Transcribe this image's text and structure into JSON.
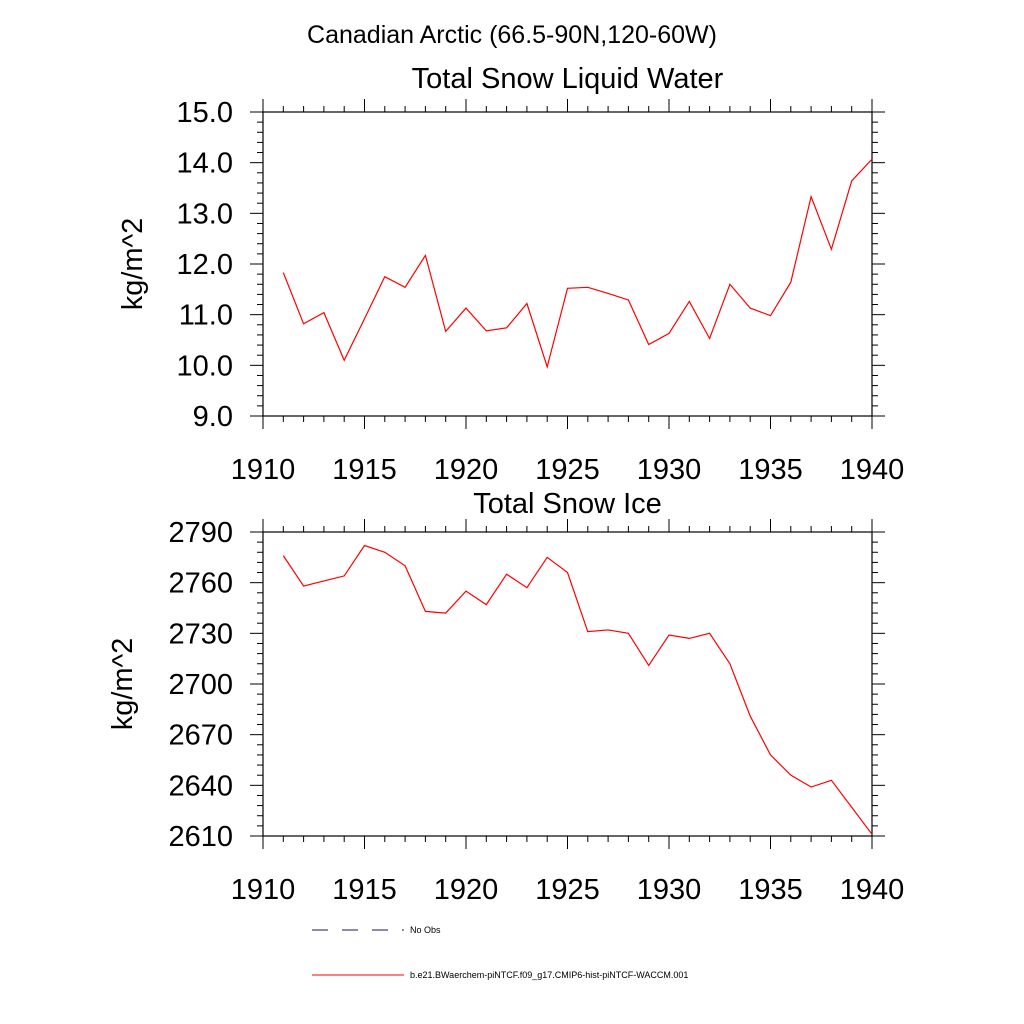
{
  "page": {
    "suptitle": "Canadian Arctic (66.5-90N,120-60W)"
  },
  "colors": {
    "model": "#ff0000",
    "obs": "#1a1a66",
    "axis": "#000000"
  },
  "legend": {
    "position": "bottom-center",
    "entries": [
      {
        "label": "No Obs",
        "style": "dashed",
        "color": "#1a1a66"
      },
      {
        "label": "b.e21.BWaerchem-piNTCF.f09_g17.CMIP6-hist-piNTCF-WACCM.001",
        "style": "solid",
        "color": "#ff0000"
      }
    ]
  },
  "chart_data": [
    {
      "type": "line",
      "title": "Total Snow Liquid Water",
      "xlabel": "",
      "ylabel": "kg/m^2",
      "xlim": [
        1910,
        1940
      ],
      "ylim": [
        9.0,
        15.0
      ],
      "xticks": [
        1910,
        1915,
        1920,
        1925,
        1930,
        1935,
        1940
      ],
      "xtick_labels": [
        "1910",
        "1915",
        "1920",
        "1925",
        "1930",
        "1935",
        "1940"
      ],
      "yticks": [
        9.0,
        10.0,
        11.0,
        12.0,
        13.0,
        14.0,
        15.0
      ],
      "ytick_labels": [
        "9.0",
        "10.0",
        "11.0",
        "12.0",
        "13.0",
        "14.0",
        "15.0"
      ],
      "grid": false,
      "series": [
        {
          "name": "b.e21.BWaerchem-piNTCF.f09_g17.CMIP6-hist-piNTCF-WACCM.001",
          "color": "#ff0000",
          "x": [
            1911,
            1912,
            1913,
            1914,
            1915,
            1916,
            1917,
            1918,
            1919,
            1920,
            1921,
            1922,
            1923,
            1924,
            1925,
            1926,
            1927,
            1928,
            1929,
            1930,
            1931,
            1932,
            1933,
            1934,
            1935,
            1936,
            1937,
            1938,
            1939,
            1940
          ],
          "values": [
            11.83,
            10.82,
            11.04,
            10.1,
            10.92,
            11.75,
            11.54,
            12.17,
            10.67,
            11.13,
            10.68,
            10.74,
            11.22,
            9.97,
            11.52,
            11.54,
            11.42,
            11.29,
            10.41,
            10.63,
            11.26,
            10.53,
            11.6,
            11.13,
            10.98,
            11.64,
            13.33,
            12.29,
            13.64,
            14.07
          ]
        }
      ]
    },
    {
      "type": "line",
      "title": "Total Snow Ice",
      "xlabel": "",
      "ylabel": "kg/m^2",
      "xlim": [
        1910,
        1940
      ],
      "ylim": [
        2610,
        2790
      ],
      "xticks": [
        1910,
        1915,
        1920,
        1925,
        1930,
        1935,
        1940
      ],
      "xtick_labels": [
        "1910",
        "1915",
        "1920",
        "1925",
        "1930",
        "1935",
        "1940"
      ],
      "yticks": [
        2610,
        2640,
        2670,
        2700,
        2730,
        2760,
        2790
      ],
      "ytick_labels": [
        "2610",
        "2640",
        "2670",
        "2700",
        "2730",
        "2760",
        "2790"
      ],
      "grid": false,
      "series": [
        {
          "name": "b.e21.BWaerchem-piNTCF.f09_g17.CMIP6-hist-piNTCF-WACCM.001",
          "color": "#ff0000",
          "x": [
            1911,
            1912,
            1913,
            1914,
            1915,
            1916,
            1917,
            1918,
            1919,
            1920,
            1921,
            1922,
            1923,
            1924,
            1925,
            1926,
            1927,
            1928,
            1929,
            1930,
            1931,
            1932,
            1933,
            1934,
            1935,
            1936,
            1937,
            1938,
            1939,
            1940
          ],
          "values": [
            2776,
            2758,
            2761,
            2764,
            2782,
            2778,
            2770,
            2743,
            2742,
            2755,
            2747,
            2765,
            2757,
            2775,
            2766,
            2731,
            2732,
            2730,
            2711,
            2729,
            2727,
            2730,
            2712,
            2681,
            2658,
            2646,
            2639,
            2643,
            2627,
            2611
          ]
        }
      ]
    }
  ]
}
